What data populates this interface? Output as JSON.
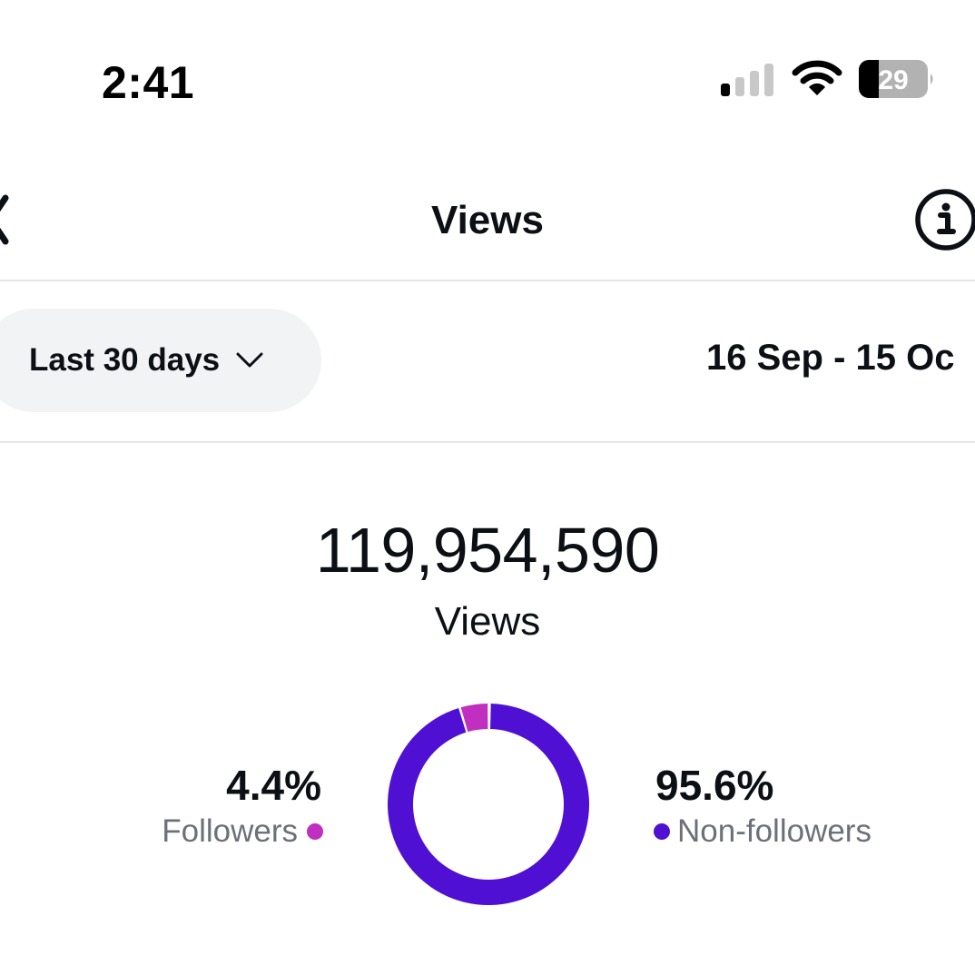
{
  "status_bar": {
    "time": "2:41",
    "battery_level": "29",
    "signal_bars_active": 1,
    "signal_bars_total": 4,
    "icons": [
      "cellular-signal-icon",
      "wifi-icon",
      "battery-icon"
    ]
  },
  "header": {
    "title": "Views",
    "back_icon": "chevron-left-icon",
    "info_icon": "info-circle-icon"
  },
  "filter": {
    "range_label": "Last 30 days",
    "range_icon": "chevron-down-icon",
    "date_range": "16 Sep - 15 Oc"
  },
  "summary": {
    "total": "119,954,590",
    "total_label": "Views"
  },
  "breakdown": {
    "followers": {
      "pct": "4.4%",
      "label": "Followers",
      "color": "#c02fbf"
    },
    "non_followers": {
      "pct": "95.6%",
      "label": "Non-followers",
      "color": "#4f10d4"
    }
  },
  "chart_data": {
    "type": "pie",
    "subtype": "donut",
    "title": "Views",
    "categories": [
      "Followers",
      "Non-followers"
    ],
    "values": [
      4.4,
      95.6
    ],
    "colors": [
      "#c02fbf",
      "#4f10d4"
    ],
    "unit": "%",
    "total": 119954590,
    "legend_position": "sides"
  }
}
